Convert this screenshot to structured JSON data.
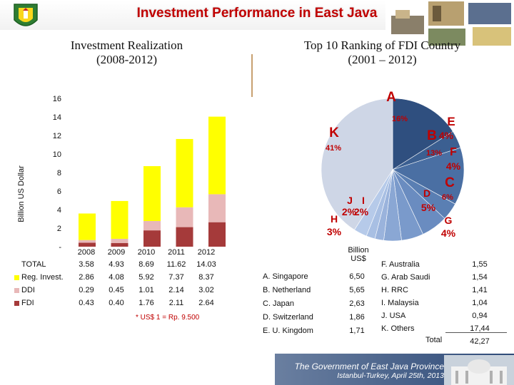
{
  "header": {
    "title": "Investment Performance in East Java"
  },
  "left_panel": {
    "subtitle_line1": "Investment Realization",
    "subtitle_line2": "(2008-2012)",
    "note": "* US$ 1 = Rp. 9.500"
  },
  "right_panel": {
    "subtitle_line1": "Top 10 Ranking of FDI Country",
    "subtitle_line2": "(2001 – 2012)"
  },
  "colors": {
    "fdi": "#a53a3a",
    "ddi": "#e8b8b8",
    "reg_invest": "#ffff00",
    "title_red": "#c00000",
    "pie_label_red": "#c00000"
  },
  "chart_data": [
    {
      "type": "bar",
      "stacked": true,
      "ylabel": "Billion US Dollar",
      "ylim": [
        0,
        16
      ],
      "yticks": [
        "-",
        "2",
        "4",
        "6",
        "8",
        "10",
        "12",
        "14",
        "16"
      ],
      "grid": false,
      "categories": [
        "2008",
        "2009",
        "2010",
        "2011",
        "2012"
      ],
      "series": [
        {
          "name": "FDI",
          "values": [
            0.43,
            0.4,
            1.76,
            2.11,
            2.64
          ]
        },
        {
          "name": "DDI",
          "values": [
            0.29,
            0.45,
            1.01,
            2.14,
            3.02
          ]
        },
        {
          "name": "Reg. Invest.",
          "values": [
            2.86,
            4.08,
            5.92,
            7.37,
            8.37
          ]
        }
      ],
      "totals_label": "TOTAL",
      "totals": [
        3.58,
        4.93,
        8.69,
        11.62,
        14.03
      ],
      "table": [
        {
          "label": "TOTAL",
          "values": [
            "3.58",
            "4.93",
            "8.69",
            "11.62",
            "14.03"
          ]
        },
        {
          "label": "Reg. Invest.",
          "values": [
            "2.86",
            "4.08",
            "5.92",
            "7.37",
            "8.37"
          ]
        },
        {
          "label": "DDI",
          "values": [
            "0.29",
            "0.45",
            "1.01",
            "2.14",
            "3.02"
          ]
        },
        {
          "label": "FDI",
          "values": [
            "0.43",
            "0.40",
            "1.76",
            "2.11",
            "2.64"
          ]
        }
      ]
    },
    {
      "type": "pie",
      "slices": [
        {
          "letter": "A",
          "pct": "16%",
          "value": 16
        },
        {
          "letter": "E",
          "pct": "4%",
          "value": 4
        },
        {
          "letter": "B",
          "pct": "13%",
          "value": 13
        },
        {
          "letter": "F",
          "pct": "4%",
          "value": 4
        },
        {
          "letter": "C",
          "pct": "6%",
          "value": 6
        },
        {
          "letter": "D",
          "pct": "5%",
          "value": 5
        },
        {
          "letter": "G",
          "pct": "4%",
          "value": 4
        },
        {
          "letter": "I",
          "pct": "2%",
          "value": 2
        },
        {
          "letter": "J",
          "pct": "2%",
          "value": 2
        },
        {
          "letter": "H",
          "pct": "3%",
          "value": 3
        },
        {
          "letter": "K",
          "pct": "41%",
          "value": 41
        }
      ]
    }
  ],
  "fdi_table": {
    "header_line1": "Billion",
    "header_line2": "US$",
    "left_rows": [
      {
        "name": "A. Singapore",
        "value": "6,50"
      },
      {
        "name": "B. Netherland",
        "value": "5,65"
      },
      {
        "name": "C. Japan",
        "value": "2,63"
      },
      {
        "name": "D. Switzerland",
        "value": "1,86"
      },
      {
        "name": "E. U. Kingdom",
        "value": "1,71"
      }
    ],
    "right_rows": [
      {
        "name": "F. Australia",
        "value": "1,55"
      },
      {
        "name": "G. Arab Saudi",
        "value": "1,54"
      },
      {
        "name": "H. RRC",
        "value": "1,41"
      },
      {
        "name": "I. Malaysia",
        "value": "1,04"
      },
      {
        "name": "J. USA",
        "value": "0,94"
      },
      {
        "name": "K. Others",
        "value": "17,44"
      }
    ],
    "total_label": "Total",
    "total_value": "42,27"
  },
  "footer": {
    "line1": "The Government of East Java Province",
    "line2": "Istanbul-Turkey, April 25th, 2013"
  }
}
